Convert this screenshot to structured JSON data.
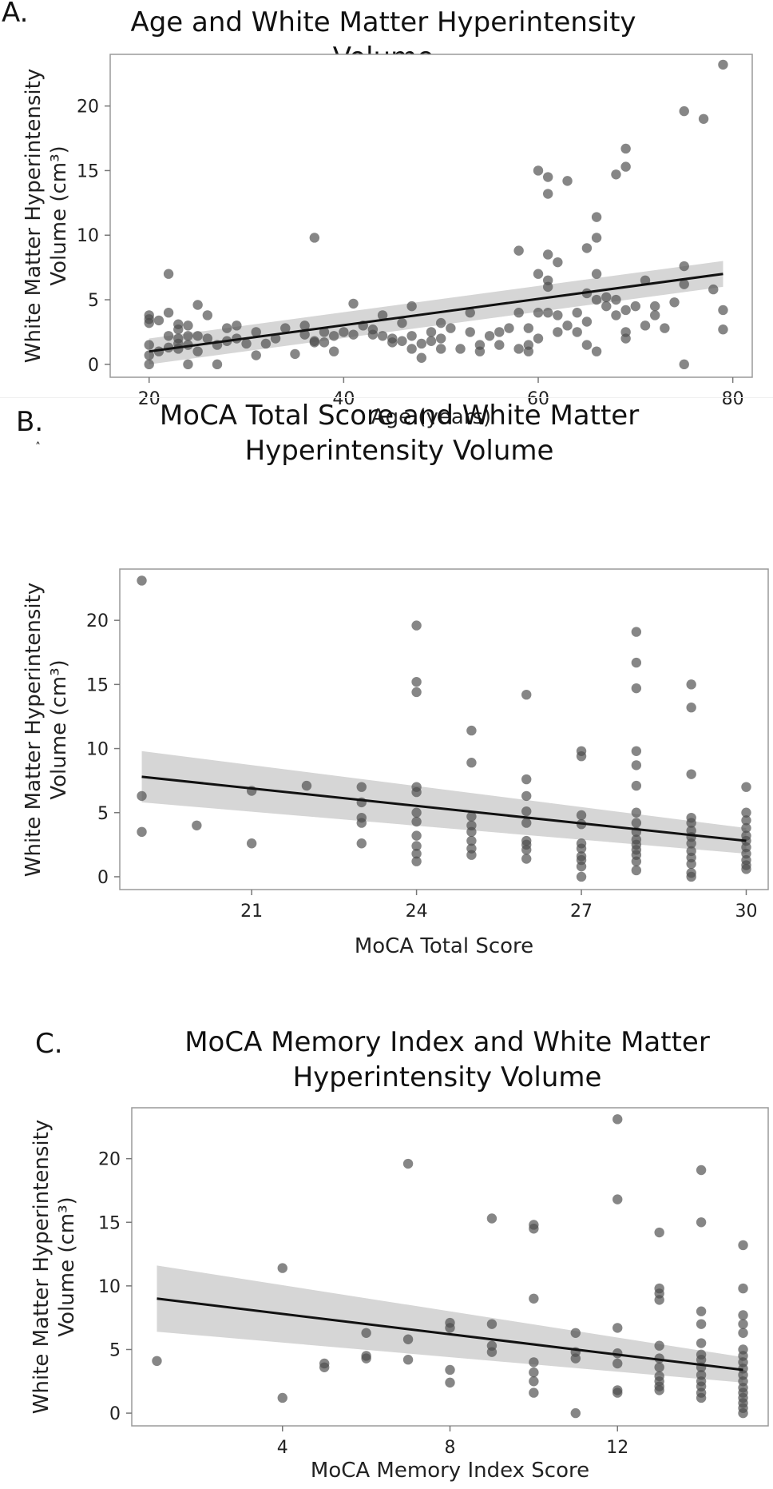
{
  "chart_data": [
    {
      "type": "scatter",
      "panel_label": "A.",
      "title": "Age and White Matter Hyperintensity Volume",
      "xlabel": "Age (years)",
      "ylabel": "White Matter Hyperintensity\nVolume (cm³)",
      "xlim": [
        16,
        82
      ],
      "ylim": [
        -1,
        24
      ],
      "xticks": [
        20,
        40,
        60,
        80
      ],
      "yticks": [
        0,
        5,
        10,
        15,
        20
      ],
      "fit_line": {
        "x": [
          20,
          79
        ],
        "y": [
          1.0,
          7.0
        ]
      },
      "ci_band": {
        "x": [
          20,
          79
        ],
        "lower": [
          0.0,
          6.0
        ],
        "upper": [
          2.0,
          8.0
        ]
      },
      "points": [
        [
          20,
          3.8
        ],
        [
          20,
          3.5
        ],
        [
          20,
          3.2
        ],
        [
          20,
          1.5
        ],
        [
          20,
          0.7
        ],
        [
          20,
          0.0
        ],
        [
          21,
          3.4
        ],
        [
          21,
          1.0
        ],
        [
          22,
          7.0
        ],
        [
          22,
          4.0
        ],
        [
          22,
          2.2
        ],
        [
          22,
          1.3
        ],
        [
          23,
          3.1
        ],
        [
          23,
          2.7
        ],
        [
          23,
          2.0
        ],
        [
          23,
          1.6
        ],
        [
          23,
          1.2
        ],
        [
          24,
          3.0
        ],
        [
          24,
          2.2
        ],
        [
          24,
          1.5
        ],
        [
          24,
          0.0
        ],
        [
          25,
          4.6
        ],
        [
          25,
          2.2
        ],
        [
          25,
          1.0
        ],
        [
          26,
          3.8
        ],
        [
          26,
          2.0
        ],
        [
          27,
          1.5
        ],
        [
          27,
          0.0
        ],
        [
          28,
          2.8
        ],
        [
          28,
          1.8
        ],
        [
          29,
          3.0
        ],
        [
          29,
          2.0
        ],
        [
          30,
          1.6
        ],
        [
          31,
          2.5
        ],
        [
          31,
          0.7
        ],
        [
          32,
          1.6
        ],
        [
          33,
          2.0
        ],
        [
          34,
          2.8
        ],
        [
          35,
          0.8
        ],
        [
          36,
          3.0
        ],
        [
          36,
          2.3
        ],
        [
          37,
          9.8
        ],
        [
          37,
          1.8
        ],
        [
          37,
          1.7
        ],
        [
          38,
          2.5
        ],
        [
          38,
          1.7
        ],
        [
          39,
          2.2
        ],
        [
          39,
          1.0
        ],
        [
          40,
          2.5
        ],
        [
          41,
          4.7
        ],
        [
          41,
          2.3
        ],
        [
          42,
          3.0
        ],
        [
          43,
          2.7
        ],
        [
          43,
          2.3
        ],
        [
          44,
          3.8
        ],
        [
          44,
          2.2
        ],
        [
          45,
          2.0
        ],
        [
          45,
          1.7
        ],
        [
          46,
          3.2
        ],
        [
          46,
          1.8
        ],
        [
          47,
          4.5
        ],
        [
          47,
          2.2
        ],
        [
          47,
          1.2
        ],
        [
          48,
          1.6
        ],
        [
          48,
          0.5
        ],
        [
          49,
          2.5
        ],
        [
          49,
          1.8
        ],
        [
          50,
          3.2
        ],
        [
          50,
          2.0
        ],
        [
          50,
          1.2
        ],
        [
          51,
          2.8
        ],
        [
          52,
          1.2
        ],
        [
          53,
          4.0
        ],
        [
          53,
          2.5
        ],
        [
          54,
          1.5
        ],
        [
          54,
          1.0
        ],
        [
          55,
          2.2
        ],
        [
          56,
          2.5
        ],
        [
          56,
          1.5
        ],
        [
          57,
          2.8
        ],
        [
          58,
          8.8
        ],
        [
          58,
          4.0
        ],
        [
          58,
          1.2
        ],
        [
          59,
          2.8
        ],
        [
          59,
          1.5
        ],
        [
          59,
          1.0
        ],
        [
          60,
          15.0
        ],
        [
          60,
          7.0
        ],
        [
          60,
          4.0
        ],
        [
          60,
          2.0
        ],
        [
          61,
          14.5
        ],
        [
          61,
          13.2
        ],
        [
          61,
          8.5
        ],
        [
          61,
          6.5
        ],
        [
          61,
          6.0
        ],
        [
          61,
          4.0
        ],
        [
          62,
          3.8
        ],
        [
          62,
          2.5
        ],
        [
          62,
          7.9
        ],
        [
          63,
          14.2
        ],
        [
          63,
          3.0
        ],
        [
          64,
          4.0
        ],
        [
          64,
          2.5
        ],
        [
          65,
          9.0
        ],
        [
          65,
          5.5
        ],
        [
          65,
          3.3
        ],
        [
          65,
          1.5
        ],
        [
          66,
          11.4
        ],
        [
          66,
          9.8
        ],
        [
          66,
          7.0
        ],
        [
          66,
          5.0
        ],
        [
          66,
          1.0
        ],
        [
          67,
          5.2
        ],
        [
          67,
          4.5
        ],
        [
          68,
          14.7
        ],
        [
          68,
          5.0
        ],
        [
          68,
          3.8
        ],
        [
          69,
          16.7
        ],
        [
          69,
          15.3
        ],
        [
          69,
          4.2
        ],
        [
          69,
          2.5
        ],
        [
          69,
          2.0
        ],
        [
          70,
          4.5
        ],
        [
          71,
          6.5
        ],
        [
          71,
          3.0
        ],
        [
          72,
          4.5
        ],
        [
          72,
          3.8
        ],
        [
          73,
          2.8
        ],
        [
          74,
          4.8
        ],
        [
          75,
          19.6
        ],
        [
          75,
          7.6
        ],
        [
          75,
          6.2
        ],
        [
          75,
          0.0
        ],
        [
          77,
          19.0
        ],
        [
          78,
          5.8
        ],
        [
          79,
          23.2
        ],
        [
          79,
          4.2
        ],
        [
          79,
          2.7
        ]
      ]
    },
    {
      "type": "scatter",
      "panel_label": "B.",
      "title": "MoCA Total Score and White Matter\nHyperintensity Volume",
      "xlabel": "MoCA Total Score",
      "ylabel": "White Matter Hyperintensity\nVolume (cm³)",
      "stray_mark": "˄",
      "xlim": [
        18.6,
        30.4
      ],
      "ylim": [
        -1,
        24
      ],
      "xticks": [
        21,
        24,
        27,
        30
      ],
      "yticks": [
        0,
        5,
        10,
        15,
        20
      ],
      "fit_line": {
        "x": [
          19,
          30
        ],
        "y": [
          7.8,
          2.8
        ]
      },
      "ci_band": {
        "x": [
          19,
          30
        ],
        "lower": [
          5.8,
          1.8
        ],
        "upper": [
          9.8,
          3.8
        ]
      },
      "points": [
        [
          19,
          23.1
        ],
        [
          19,
          6.3
        ],
        [
          19,
          3.5
        ],
        [
          20,
          4.0
        ],
        [
          21,
          6.7
        ],
        [
          21,
          2.6
        ],
        [
          22,
          7.1
        ],
        [
          23,
          7.0
        ],
        [
          23,
          5.8
        ],
        [
          23,
          4.6
        ],
        [
          23,
          4.2
        ],
        [
          23,
          2.6
        ],
        [
          24,
          19.6
        ],
        [
          24,
          15.2
        ],
        [
          24,
          14.4
        ],
        [
          24,
          7.0
        ],
        [
          24,
          6.6
        ],
        [
          24,
          5.0
        ],
        [
          24,
          4.3
        ],
        [
          24,
          3.2
        ],
        [
          24,
          2.4
        ],
        [
          24,
          1.8
        ],
        [
          24,
          1.2
        ],
        [
          25,
          11.4
        ],
        [
          25,
          8.9
        ],
        [
          25,
          4.7
        ],
        [
          25,
          4.0
        ],
        [
          25,
          3.5
        ],
        [
          25,
          2.8
        ],
        [
          25,
          2.2
        ],
        [
          25,
          1.7
        ],
        [
          26,
          14.2
        ],
        [
          26,
          7.6
        ],
        [
          26,
          6.3
        ],
        [
          26,
          5.1
        ],
        [
          26,
          4.2
        ],
        [
          26,
          2.8
        ],
        [
          26,
          2.5
        ],
        [
          26,
          2.1
        ],
        [
          26,
          1.4
        ],
        [
          27,
          9.8
        ],
        [
          27,
          9.4
        ],
        [
          27,
          4.8
        ],
        [
          27,
          4.1
        ],
        [
          27,
          2.6
        ],
        [
          27,
          2.2
        ],
        [
          27,
          1.6
        ],
        [
          27,
          1.3
        ],
        [
          27,
          0.8
        ],
        [
          27,
          0.0
        ],
        [
          28,
          19.1
        ],
        [
          28,
          16.7
        ],
        [
          28,
          14.7
        ],
        [
          28,
          9.8
        ],
        [
          28,
          8.7
        ],
        [
          28,
          7.1
        ],
        [
          28,
          5.0
        ],
        [
          28,
          4.2
        ],
        [
          28,
          3.5
        ],
        [
          28,
          2.9
        ],
        [
          28,
          2.5
        ],
        [
          28,
          2.1
        ],
        [
          28,
          1.7
        ],
        [
          28,
          1.2
        ],
        [
          28,
          0.5
        ],
        [
          29,
          15.0
        ],
        [
          29,
          13.2
        ],
        [
          29,
          8.0
        ],
        [
          29,
          4.6
        ],
        [
          29,
          4.2
        ],
        [
          29,
          3.6
        ],
        [
          29,
          3.1
        ],
        [
          29,
          2.6
        ],
        [
          29,
          2.0
        ],
        [
          29,
          1.5
        ],
        [
          29,
          1.0
        ],
        [
          29,
          0.3
        ],
        [
          29,
          0.0
        ],
        [
          30,
          7.0
        ],
        [
          30,
          5.0
        ],
        [
          30,
          4.4
        ],
        [
          30,
          3.8
        ],
        [
          30,
          3.2
        ],
        [
          30,
          2.8
        ],
        [
          30,
          2.3
        ],
        [
          30,
          1.8
        ],
        [
          30,
          1.3
        ],
        [
          30,
          0.9
        ],
        [
          30,
          0.6
        ]
      ]
    },
    {
      "type": "scatter",
      "panel_label": "C.",
      "title": "MoCA Memory Index and White Matter\nHyperintensity Volume",
      "xlabel": "MoCA Memory Index Score",
      "ylabel": "White Matter Hyperintensity\nVolume (cm³)",
      "xlim": [
        0.4,
        15.6
      ],
      "ylim": [
        -1,
        24
      ],
      "xticks": [
        4,
        8,
        12
      ],
      "yticks": [
        0,
        5,
        10,
        15,
        20
      ],
      "fit_line": {
        "x": [
          1,
          15
        ],
        "y": [
          9.0,
          3.4
        ]
      },
      "ci_band": {
        "x": [
          1,
          15
        ],
        "lower": [
          6.4,
          2.4
        ],
        "upper": [
          11.6,
          4.4
        ]
      },
      "points": [
        [
          1,
          4.1
        ],
        [
          4,
          11.4
        ],
        [
          4,
          1.2
        ],
        [
          5,
          3.9
        ],
        [
          5,
          3.6
        ],
        [
          6,
          6.3
        ],
        [
          6,
          4.5
        ],
        [
          6,
          4.3
        ],
        [
          7,
          19.6
        ],
        [
          7,
          5.8
        ],
        [
          7,
          4.2
        ],
        [
          8,
          7.1
        ],
        [
          8,
          6.7
        ],
        [
          8,
          3.4
        ],
        [
          8,
          2.4
        ],
        [
          9,
          15.3
        ],
        [
          9,
          7.0
        ],
        [
          9,
          5.3
        ],
        [
          9,
          4.8
        ],
        [
          10,
          14.8
        ],
        [
          10,
          14.5
        ],
        [
          10,
          9.0
        ],
        [
          10,
          4.0
        ],
        [
          10,
          3.2
        ],
        [
          10,
          2.5
        ],
        [
          10,
          1.6
        ],
        [
          11,
          6.3
        ],
        [
          11,
          4.8
        ],
        [
          11,
          4.3
        ],
        [
          11,
          0.0
        ],
        [
          12,
          23.1
        ],
        [
          12,
          16.8
        ],
        [
          12,
          6.7
        ],
        [
          12,
          4.7
        ],
        [
          12,
          3.9
        ],
        [
          12,
          1.8
        ],
        [
          12,
          1.6
        ],
        [
          13,
          14.2
        ],
        [
          13,
          9.8
        ],
        [
          13,
          9.4
        ],
        [
          13,
          8.9
        ],
        [
          13,
          5.3
        ],
        [
          13,
          4.3
        ],
        [
          13,
          3.6
        ],
        [
          13,
          2.9
        ],
        [
          13,
          2.5
        ],
        [
          13,
          2.1
        ],
        [
          13,
          1.8
        ],
        [
          14,
          19.1
        ],
        [
          14,
          15.0
        ],
        [
          14,
          8.0
        ],
        [
          14,
          7.0
        ],
        [
          14,
          5.5
        ],
        [
          14,
          4.6
        ],
        [
          14,
          4.2
        ],
        [
          14,
          3.6
        ],
        [
          14,
          3.0
        ],
        [
          14,
          2.5
        ],
        [
          14,
          2.1
        ],
        [
          14,
          1.6
        ],
        [
          14,
          1.2
        ],
        [
          15,
          13.2
        ],
        [
          15,
          9.8
        ],
        [
          15,
          7.7
        ],
        [
          15,
          7.0
        ],
        [
          15,
          6.3
        ],
        [
          15,
          5.0
        ],
        [
          15,
          4.5
        ],
        [
          15,
          4.0
        ],
        [
          15,
          3.5
        ],
        [
          15,
          3.0
        ],
        [
          15,
          2.5
        ],
        [
          15,
          2.0
        ],
        [
          15,
          1.6
        ],
        [
          15,
          1.2
        ],
        [
          15,
          0.8
        ],
        [
          15,
          0.4
        ],
        [
          15,
          0.0
        ]
      ]
    }
  ]
}
